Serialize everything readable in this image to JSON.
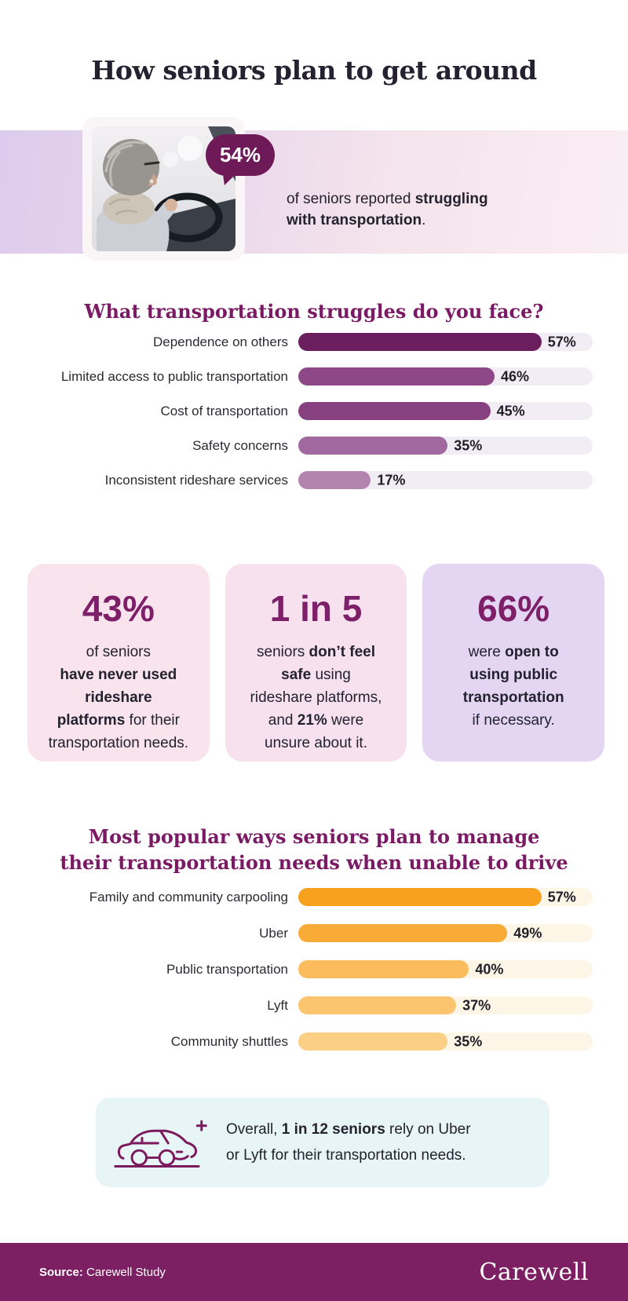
{
  "title": "How seniors plan to get around",
  "hero": {
    "badge": "54%",
    "caption_html": "of seniors reported <b>struggling<br>with transportation</b>."
  },
  "chart_data": [
    {
      "type": "bar",
      "orientation": "horizontal",
      "title": "What transportation struggles do you face?",
      "categories": [
        "Dependence on others",
        "Limited access to public transportation",
        "Cost of transportation",
        "Safety concerns",
        "Inconsistent rideshare services"
      ],
      "values": [
        57,
        46,
        45,
        35,
        17
      ],
      "unit": "%",
      "value_labels": [
        "57%",
        "46%",
        "45%",
        "35%",
        "17%"
      ],
      "bar_colors": [
        "#6c1f5e",
        "#8e4787",
        "#874180",
        "#a269a0",
        "#b285ae"
      ],
      "track_color": "#f2ecf4",
      "axis_max": 69,
      "grid": false,
      "legend": false
    },
    {
      "type": "bar",
      "orientation": "horizontal",
      "title": "Most popular ways seniors plan to manage their transportation needs when unable to drive",
      "title_lines": [
        "Most popular ways seniors plan to manage",
        "their transportation needs when unable to drive"
      ],
      "categories": [
        "Family and community carpooling",
        "Uber",
        "Public transportation",
        "Lyft",
        "Community shuttles"
      ],
      "values": [
        57,
        49,
        40,
        37,
        35
      ],
      "unit": "%",
      "value_labels": [
        "57%",
        "49%",
        "40%",
        "37%",
        "35%"
      ],
      "bar_colors": [
        "#f8a11f",
        "#f9ab37",
        "#fabc5c",
        "#fbc46e",
        "#fccf87"
      ],
      "track_color": "#fdf5e6",
      "axis_max": 69,
      "grid": false,
      "legend": false
    }
  ],
  "stat_cards": [
    {
      "value": "43%",
      "text_html": "of seniors<br><b>have never used<br>rideshare<br>platforms</b> for their<br>transportation needs.",
      "bg": "#f9e4ed"
    },
    {
      "value": "1 in 5",
      "text_html": "seniors <b>don’t feel<br>safe</b> using<br>rideshare platforms,<br>and <b>21%</b> were<br>unsure about it.",
      "bg": "#f7e1ef"
    },
    {
      "value": "66%",
      "text_html": "were <b>open to<br>using public<br>transportation</b><br>if necessary.",
      "bg": "#e4d6f2"
    }
  ],
  "callout": {
    "icon": "car-icon",
    "text_html": "Overall, <b>1 in 12 seniors</b> rely on Uber<br>or Lyft for their transportation needs."
  },
  "footer": {
    "source_label": "Source:",
    "source_value": "Carewell Study",
    "brand": "Carewell"
  },
  "theme": {
    "heading_purple": "#7b1a64",
    "stat_purple": "#7d2069",
    "bubble_magenta": "#6e1a58",
    "footer_magenta": "#7d2063",
    "icon_magenta": "#7b1a5c",
    "callout_bg": "#e7f5f6",
    "text_dark": "#23222e"
  }
}
